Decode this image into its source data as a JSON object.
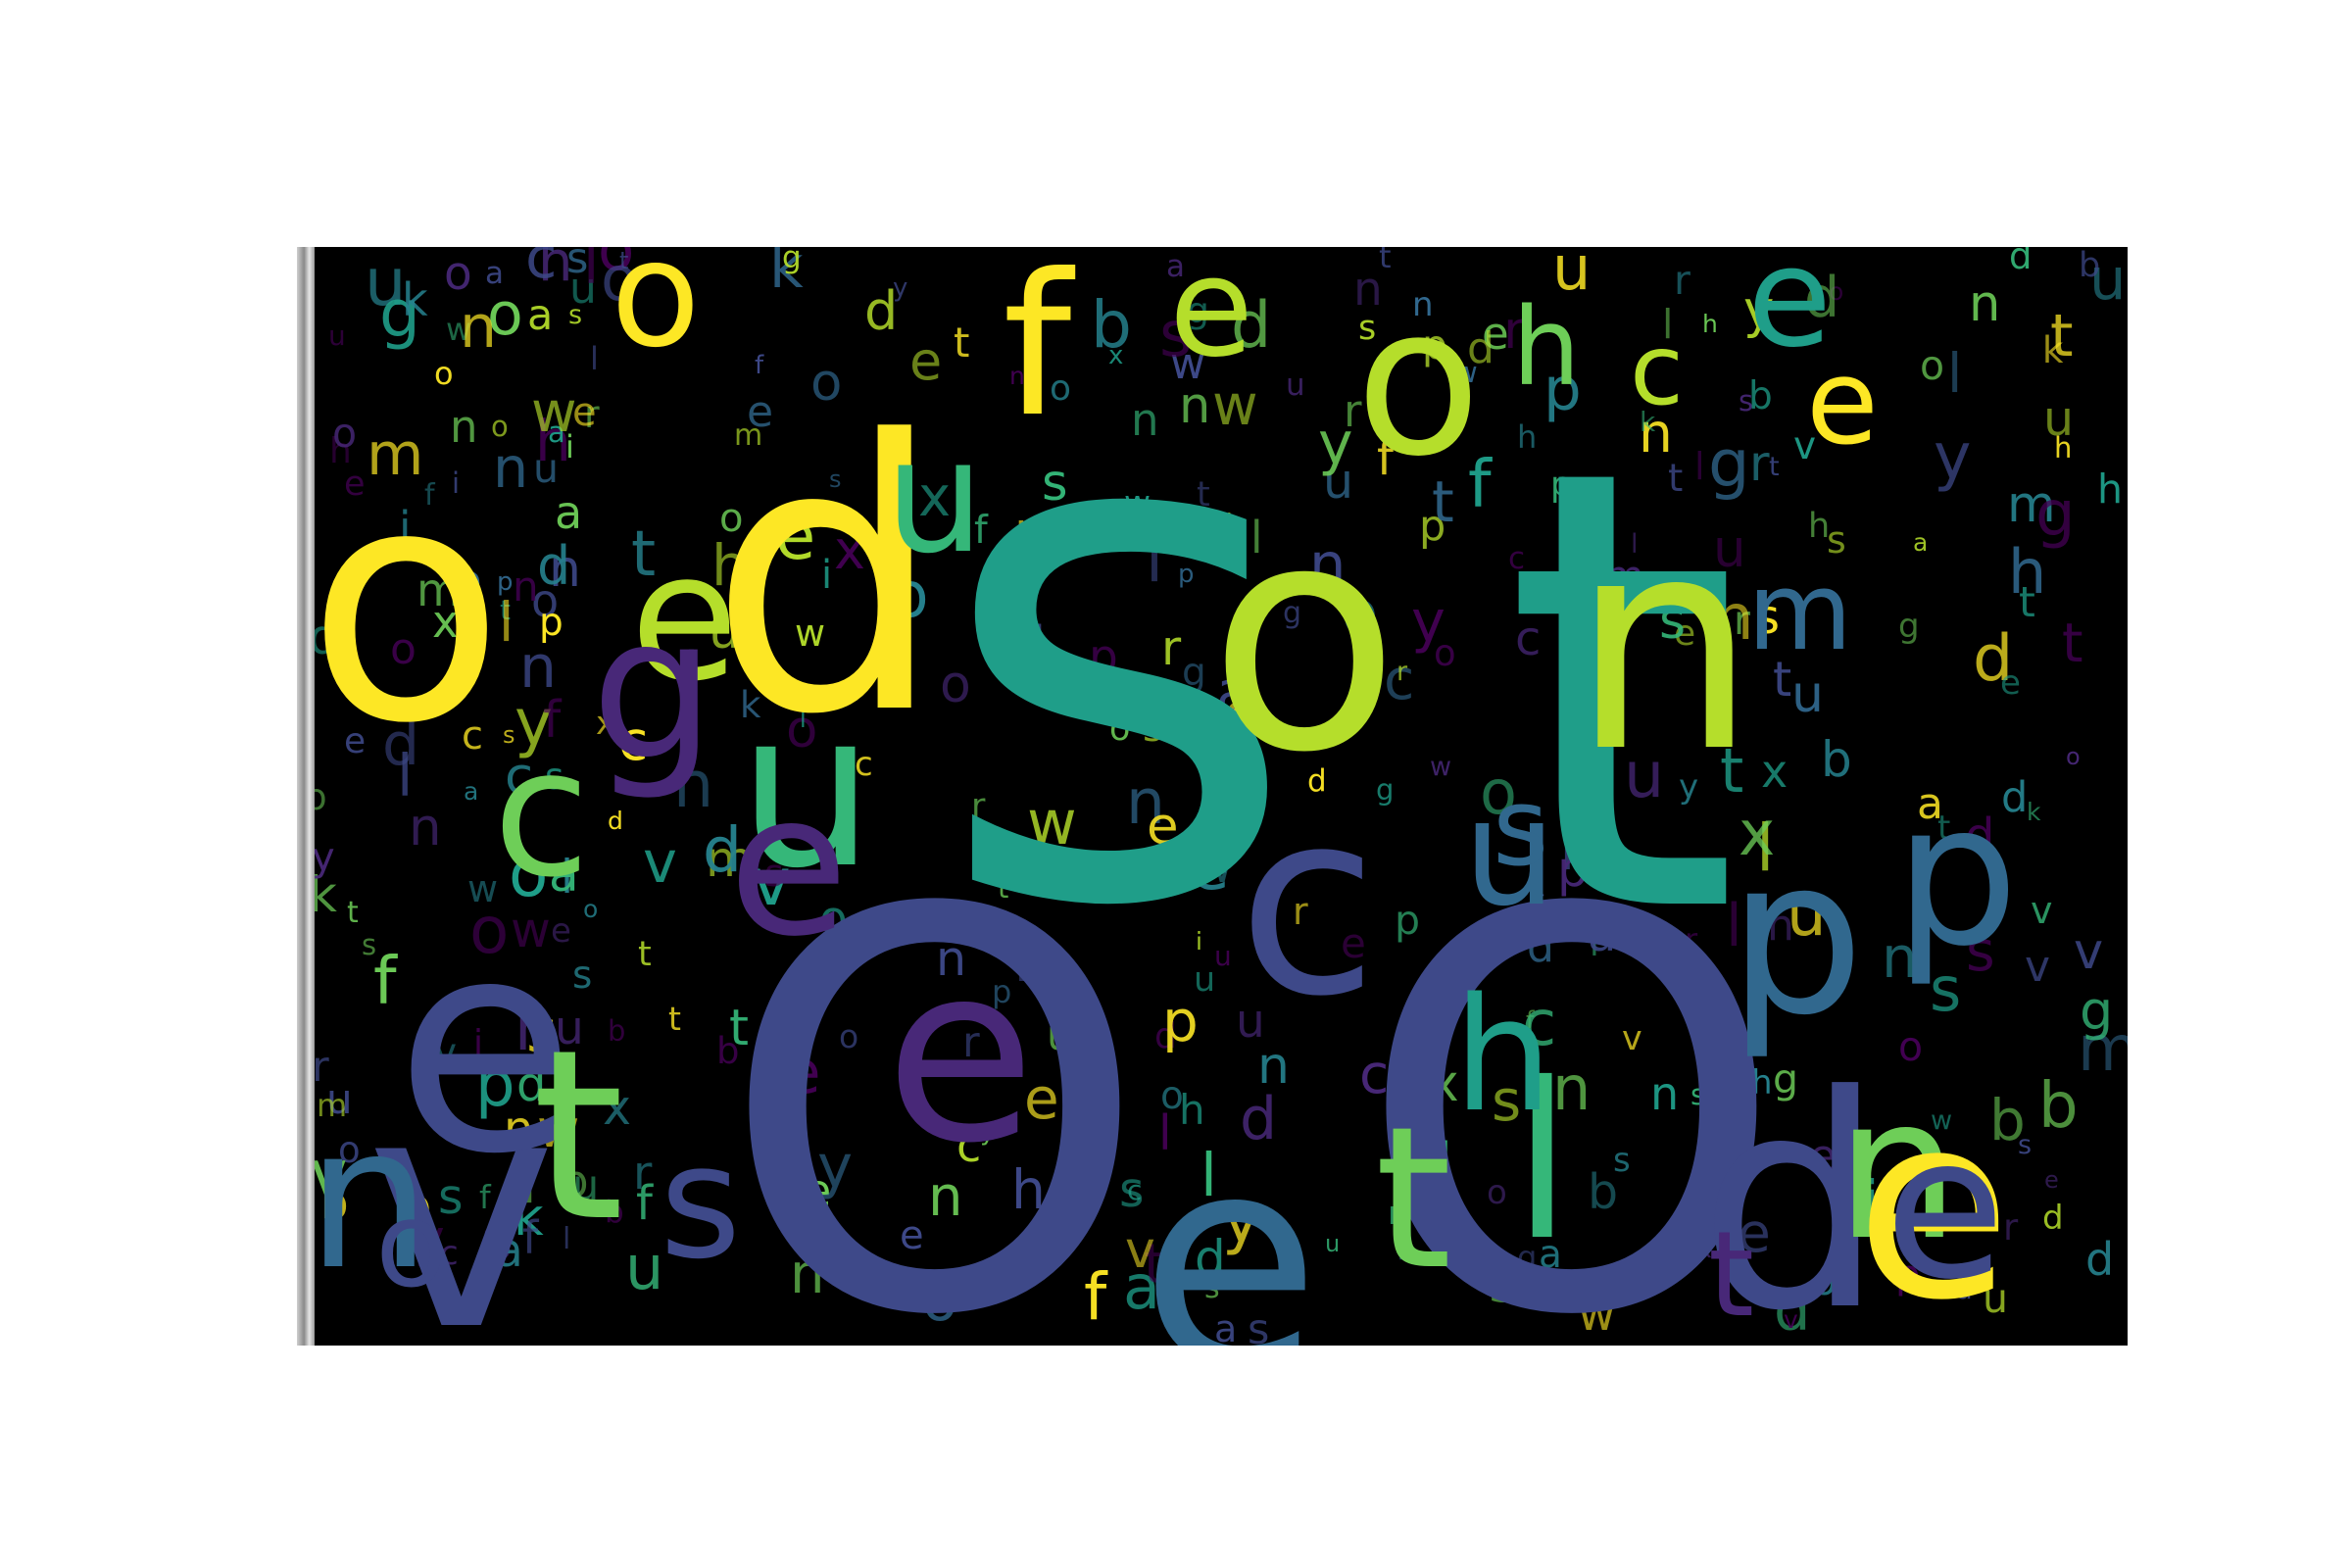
{
  "palette": [
    "#fde725",
    "#b5de2b",
    "#6ece58",
    "#35b779",
    "#1f9e89",
    "#26828e",
    "#31688e",
    "#3e4989",
    "#482878",
    "#440154"
  ],
  "words": [
    {
      "t": "s",
      "c": 4
    },
    {
      "t": "t",
      "c": 4
    },
    {
      "t": "O",
      "c": 7
    },
    {
      "t": "O",
      "c": 7
    },
    {
      "t": "d",
      "c": 0
    },
    {
      "t": "o",
      "c": 0
    },
    {
      "t": "o",
      "c": 1
    },
    {
      "t": "n",
      "c": 1
    },
    {
      "t": "e",
      "c": 6
    },
    {
      "t": "v",
      "c": 7
    },
    {
      "t": "e",
      "c": 7
    },
    {
      "t": "d",
      "c": 7
    },
    {
      "t": "n",
      "c": 6
    },
    {
      "t": "e",
      "c": 8
    },
    {
      "t": "p",
      "c": 6
    },
    {
      "t": "p",
      "c": 6
    },
    {
      "t": "t",
      "c": 2
    },
    {
      "t": "u",
      "c": 3
    },
    {
      "t": "c",
      "c": 7
    },
    {
      "t": "e",
      "c": 1
    },
    {
      "t": "f",
      "c": 0
    },
    {
      "t": "o",
      "c": 0
    },
    {
      "t": "n",
      "c": 2
    },
    {
      "t": "e",
      "c": 0
    },
    {
      "t": "g",
      "c": 8
    },
    {
      "t": "e",
      "c": 8
    },
    {
      "t": "e",
      "c": 7
    },
    {
      "t": "s",
      "c": 7
    },
    {
      "t": "c",
      "c": 2
    },
    {
      "t": "e",
      "c": 1
    },
    {
      "t": "t",
      "c": 2
    },
    {
      "t": "u",
      "c": 6
    },
    {
      "t": "l",
      "c": 3
    },
    {
      "t": "e",
      "c": 4
    },
    {
      "t": "m",
      "c": 6
    },
    {
      "t": "u",
      "c": 3
    },
    {
      "t": "s",
      "c": 6
    },
    {
      "t": "c",
      "c": 1
    },
    {
      "t": "h",
      "c": 2
    },
    {
      "t": "o",
      "c": 1
    },
    {
      "t": "t",
      "c": 8
    },
    {
      "t": "o",
      "c": 7
    },
    {
      "t": "h",
      "c": 4
    },
    {
      "t": "e",
      "c": 0
    }
  ]
}
